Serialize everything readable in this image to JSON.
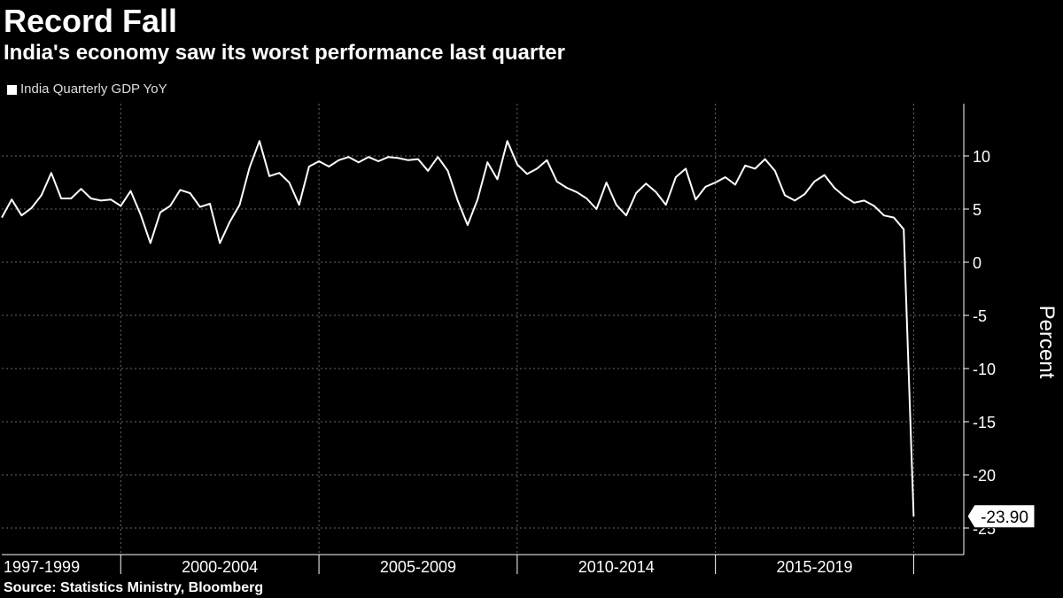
{
  "header": {
    "title": "Record Fall",
    "subtitle": "India's economy saw its worst performance last quarter"
  },
  "legend": {
    "label": "India Quarterly GDP YoY",
    "color": "#ffffff"
  },
  "footer": {
    "source": "Source: Statistics Ministry, Bloomberg"
  },
  "chart_data": {
    "type": "line",
    "title": "Record Fall",
    "subtitle": "India's economy saw its worst performance last quarter",
    "ylabel": "Percent",
    "xlabel": "",
    "ylim": [
      -27,
      15
    ],
    "yticks": [
      10,
      5,
      0,
      -5,
      -10,
      -15,
      -20,
      -25
    ],
    "ytick_labels": [
      "10",
      "5",
      "0",
      "-5",
      "-10",
      "-15",
      "-20",
      "-25"
    ],
    "x_period_labels": [
      "1997-1999",
      "2000-2004",
      "2005-2009",
      "2010-2014",
      "2015-2019"
    ],
    "x_period_start_years": [
      1997,
      2000,
      2005,
      2010,
      2015,
      2020
    ],
    "x_range": [
      1997.0,
      2020.75
    ],
    "grid": true,
    "legend_position": "top-left",
    "annotation": {
      "label": "-23.90",
      "value": -23.9
    },
    "series": [
      {
        "name": "India Quarterly GDP YoY",
        "color": "#ffffff",
        "x": [
          1997.0,
          1997.25,
          1997.5,
          1997.75,
          1998.0,
          1998.25,
          1998.5,
          1998.75,
          1999.0,
          1999.25,
          1999.5,
          1999.75,
          2000.0,
          2000.25,
          2000.5,
          2000.75,
          2001.0,
          2001.25,
          2001.5,
          2001.75,
          2002.0,
          2002.25,
          2002.5,
          2002.75,
          2003.0,
          2003.25,
          2003.5,
          2003.75,
          2004.0,
          2004.25,
          2004.5,
          2004.75,
          2005.0,
          2005.25,
          2005.5,
          2005.75,
          2006.0,
          2006.25,
          2006.5,
          2006.75,
          2007.0,
          2007.25,
          2007.5,
          2007.75,
          2008.0,
          2008.25,
          2008.5,
          2008.75,
          2009.0,
          2009.25,
          2009.5,
          2009.75,
          2010.0,
          2010.25,
          2010.5,
          2010.75,
          2011.0,
          2011.25,
          2011.5,
          2011.75,
          2012.0,
          2012.25,
          2012.5,
          2012.75,
          2013.0,
          2013.25,
          2013.5,
          2013.75,
          2014.0,
          2014.25,
          2014.5,
          2014.75,
          2015.0,
          2015.25,
          2015.5,
          2015.75,
          2016.0,
          2016.25,
          2016.5,
          2016.75,
          2017.0,
          2017.25,
          2017.5,
          2017.75,
          2018.0,
          2018.25,
          2018.5,
          2018.75,
          2019.0,
          2019.25,
          2019.5,
          2019.75,
          2020.0,
          2020.25
        ],
        "values": [
          4.2,
          5.9,
          4.4,
          5.1,
          6.3,
          8.4,
          6.0,
          6.0,
          6.9,
          6.0,
          5.8,
          5.9,
          5.3,
          6.7,
          4.5,
          1.8,
          4.7,
          5.3,
          6.8,
          6.5,
          5.2,
          5.5,
          1.8,
          3.8,
          5.4,
          8.9,
          11.4,
          8.1,
          8.4,
          7.5,
          5.4,
          9.0,
          9.5,
          9.0,
          9.6,
          9.9,
          9.4,
          9.9,
          9.5,
          9.9,
          9.8,
          9.6,
          9.7,
          8.6,
          9.9,
          8.6,
          5.8,
          3.5,
          5.9,
          9.4,
          7.8,
          11.4,
          9.2,
          8.3,
          8.8,
          9.6,
          7.6,
          7.0,
          6.6,
          6.0,
          5.0,
          7.5,
          5.4,
          4.4,
          6.5,
          7.4,
          6.6,
          5.4,
          8.0,
          8.8,
          5.9,
          7.1,
          7.5,
          8.0,
          7.3,
          9.1,
          8.8,
          9.7,
          8.6,
          6.3,
          5.8,
          6.4,
          7.6,
          8.2,
          7.0,
          6.2,
          5.6,
          5.8,
          5.3,
          4.4,
          4.2,
          3.1,
          -23.9,
          -23.9
        ]
      }
    ]
  }
}
